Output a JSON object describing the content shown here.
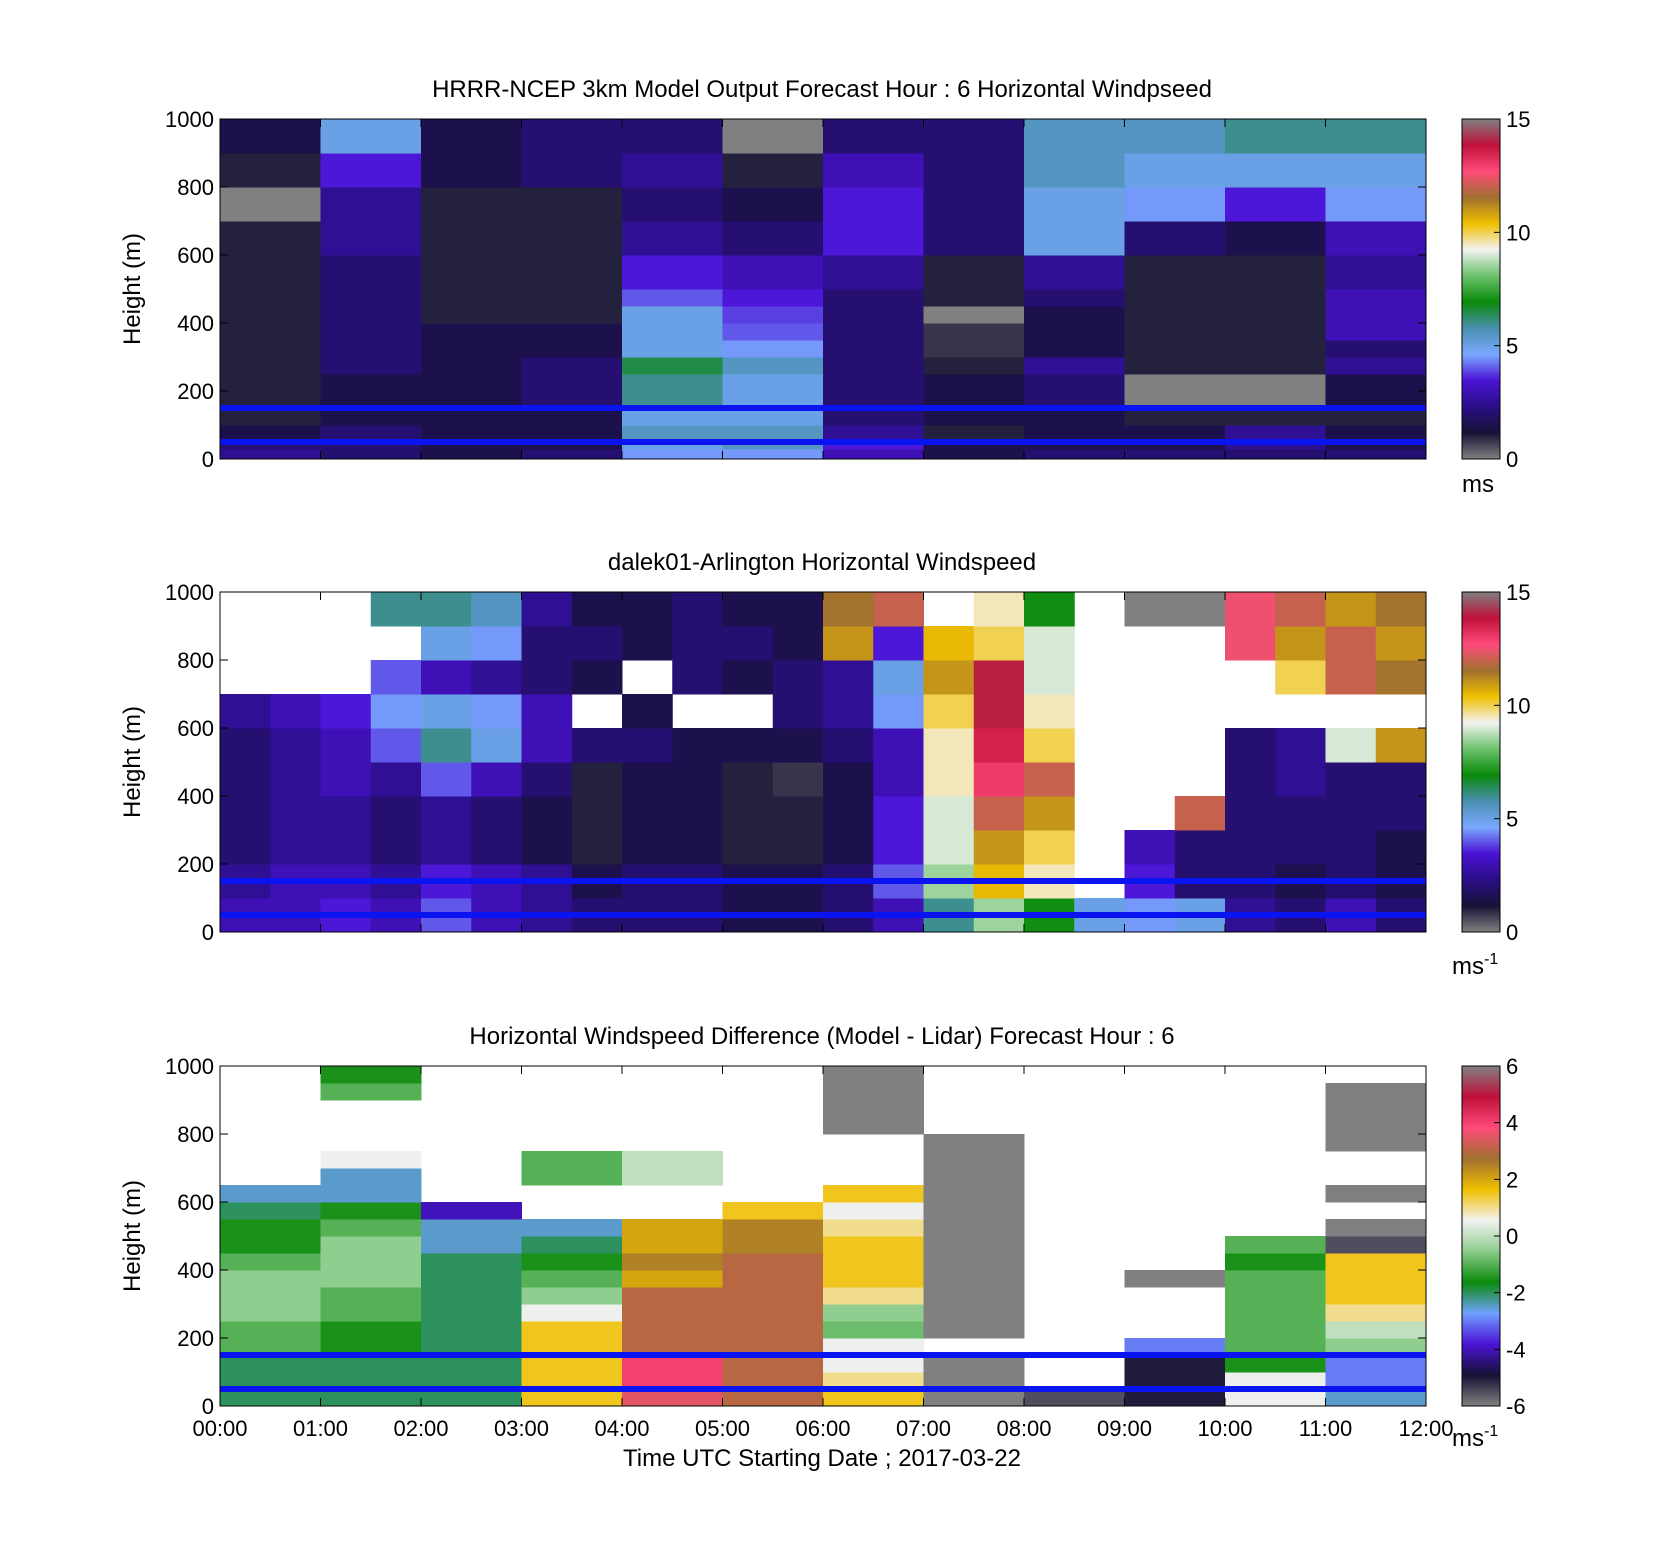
{
  "colors": {
    "ref_line": "#0a14f0",
    "wind_stops": [
      "#808080",
      "#161235",
      "#2a0e86",
      "#4b12d6",
      "#7aa8ff",
      "#4a8fb0",
      "#0a8a0a",
      "#6cc26c",
      "#f2f2f2",
      "#f0c000",
      "#a07030",
      "#ff4a7a",
      "#c0103a",
      "#808080"
    ],
    "diff_stops": [
      "#808080",
      "#161235",
      "#4b12d6",
      "#6fa0ff",
      "#0a8a0a",
      "#8ccc8c",
      "#f2f2f2",
      "#f0c000",
      "#a07030",
      "#ff4a7a",
      "#c0103a",
      "#808080"
    ]
  },
  "panels": [
    {
      "title": "HRRR-NCEP 3km Model Output   Forecast Hour : 6 Horizontal Windpseed",
      "ylabel": "Height (m)",
      "y_ticks": [
        "1000",
        "800",
        "600",
        "400",
        "200",
        "0"
      ],
      "colorbar_ticks": [
        "15",
        "10",
        "5",
        "0"
      ],
      "colorbar_unit": "ms",
      "colorbar_unit_sup": ""
    },
    {
      "title": "dalek01-Arlington  Horizontal Windspeed",
      "ylabel": "Height (m)",
      "y_ticks": [
        "1000",
        "800",
        "600",
        "400",
        "200",
        "0"
      ],
      "colorbar_ticks": [
        "15",
        "10",
        "5",
        "0"
      ],
      "colorbar_unit": "ms",
      "colorbar_unit_sup": "-1"
    },
    {
      "title": "Horizontal Windspeed Difference (Model - Lidar) Forecast Hour : 6",
      "ylabel": "Height (m)",
      "y_ticks": [
        "1000",
        "800",
        "600",
        "400",
        "200",
        "0"
      ],
      "colorbar_ticks": [
        "6",
        "4",
        "2",
        "0",
        "-2",
        "-4",
        "-6"
      ],
      "colorbar_unit": "ms",
      "colorbar_unit_sup": "-1"
    }
  ],
  "x_ticks": [
    "00:00",
    "01:00",
    "02:00",
    "03:00",
    "04:00",
    "05:00",
    "06:00",
    "07:00",
    "08:00",
    "09:00",
    "10:00",
    "11:00",
    "12:00"
  ],
  "xlabel": "Time UTC  Starting Date ; 2017-03-22",
  "chart_data": [
    {
      "type": "heatmap",
      "title": "HRRR-NCEP 3km Model Output   Forecast Hour : 6 Horizontal Windpseed",
      "xlabel": "",
      "ylabel": "Height (m)",
      "ylim": [
        0,
        1000
      ],
      "x_range": [
        "00:00",
        "12:00"
      ],
      "colorbar": {
        "range": [
          0,
          15
        ],
        "unit": "ms"
      },
      "reference_lines_height_m": [
        50,
        150
      ],
      "x": [
        "00:00",
        "01:00",
        "02:00",
        "03:00",
        "04:00",
        "05:00",
        "06:00",
        "07:00",
        "08:00",
        "09:00",
        "10:00",
        "11:00"
      ],
      "y_bin_edges": [
        0,
        30,
        60,
        100,
        160,
        200,
        250,
        300,
        350,
        400,
        450,
        500,
        550,
        600,
        700,
        800,
        900,
        1000
      ],
      "values": [
        [
          2.5,
          2.0,
          1.5,
          2.0,
          4.5,
          4.5,
          3.0,
          1.5,
          2.0,
          2.0,
          2.0,
          2.0
        ],
        [
          2.0,
          2.0,
          1.5,
          1.5,
          5.0,
          5.5,
          3.5,
          1.5,
          1.5,
          1.5,
          2.5,
          1.5
        ],
        [
          1.5,
          2.0,
          1.5,
          1.5,
          5.5,
          5.5,
          2.5,
          1.0,
          1.5,
          1.5,
          2.5,
          1.5
        ],
        [
          1.0,
          1.5,
          1.5,
          1.5,
          5.0,
          5.0,
          2.0,
          1.5,
          1.5,
          1.0,
          1.0,
          1.0
        ],
        [
          1.0,
          1.5,
          1.5,
          2.0,
          6.0,
          5.0,
          2.0,
          1.5,
          2.0,
          0.0,
          0.0,
          1.5
        ],
        [
          1.0,
          1.5,
          1.5,
          2.0,
          6.0,
          5.0,
          2.0,
          1.5,
          2.0,
          0.0,
          0.0,
          1.5
        ],
        [
          1.0,
          2.0,
          1.5,
          2.0,
          6.5,
          5.5,
          2.0,
          1.0,
          2.5,
          1.0,
          1.0,
          2.5
        ],
        [
          1.0,
          2.0,
          1.5,
          1.5,
          5.0,
          4.5,
          2.0,
          0.8,
          1.5,
          1.0,
          1.0,
          2.0
        ],
        [
          1.0,
          2.0,
          1.5,
          1.5,
          5.0,
          4.0,
          2.0,
          0.8,
          1.5,
          1.0,
          1.0,
          3.0
        ],
        [
          1.0,
          2.0,
          1.0,
          1.0,
          5.0,
          3.8,
          2.0,
          0.0,
          1.5,
          1.0,
          1.0,
          3.0
        ],
        [
          1.0,
          2.0,
          1.0,
          1.0,
          4.0,
          3.5,
          2.0,
          1.0,
          2.0,
          1.0,
          1.0,
          3.0
        ],
        [
          1.0,
          2.0,
          1.0,
          1.0,
          3.5,
          3.0,
          2.5,
          1.0,
          2.5,
          1.0,
          1.0,
          2.5
        ],
        [
          1.0,
          2.0,
          1.0,
          1.0,
          3.5,
          3.0,
          2.5,
          1.0,
          2.5,
          1.0,
          1.0,
          2.5
        ],
        [
          1.0,
          2.5,
          1.0,
          1.0,
          2.5,
          2.0,
          3.5,
          2.0,
          5.0,
          2.0,
          1.5,
          3.0
        ],
        [
          0.0,
          2.5,
          1.0,
          1.0,
          2.0,
          1.5,
          3.5,
          2.0,
          5.0,
          4.5,
          3.5,
          4.5
        ],
        [
          1.0,
          3.5,
          1.5,
          2.0,
          2.5,
          1.0,
          3.0,
          2.0,
          5.5,
          5.0,
          5.0,
          5.0
        ],
        [
          1.5,
          5.0,
          1.5,
          2.0,
          2.0,
          0.0,
          2.0,
          2.0,
          5.5,
          5.5,
          6.0,
          6.0
        ]
      ]
    },
    {
      "type": "heatmap",
      "title": "dalek01-Arlington  Horizontal Windspeed",
      "xlabel": "",
      "ylabel": "Height (m)",
      "ylim": [
        0,
        1000
      ],
      "x_range": [
        "00:00",
        "12:00"
      ],
      "colorbar": {
        "range": [
          0,
          15
        ],
        "unit": "ms-1"
      },
      "reference_lines_height_m": [
        50,
        150
      ],
      "x": [
        "00:00",
        "00:30",
        "01:00",
        "01:30",
        "02:00",
        "02:30",
        "03:00",
        "03:30",
        "04:00",
        "04:30",
        "05:00",
        "05:30",
        "06:00",
        "06:30",
        "07:00",
        "07:30",
        "08:00",
        "08:30",
        "09:00",
        "09:30",
        "10:00",
        "10:30",
        "11:00",
        "11:30"
      ],
      "y_bin_edges": [
        0,
        100,
        200,
        300,
        400,
        500,
        600,
        700,
        800,
        900,
        1000
      ],
      "values": [
        [
          3.0,
          3.0,
          3.5,
          3.0,
          4.0,
          3.0,
          2.5,
          2.0,
          2.0,
          2.0,
          1.5,
          1.5,
          2.0,
          3.0,
          6.0,
          8.5,
          7.0,
          5.0,
          4.5,
          5.0,
          2.5,
          2.0,
          3.0,
          2.0
        ],
        [
          2.5,
          3.0,
          3.0,
          2.5,
          3.5,
          3.0,
          2.5,
          1.5,
          2.0,
          2.0,
          1.5,
          1.5,
          2.0,
          4.0,
          8.5,
          10.5,
          9.5,
          null,
          3.5,
          2.0,
          2.0,
          1.5,
          2.0,
          1.5
        ],
        [
          2.0,
          2.5,
          2.5,
          2.0,
          2.5,
          2.0,
          1.5,
          1.0,
          1.5,
          1.5,
          1.0,
          1.0,
          1.5,
          3.5,
          9.0,
          11.0,
          10.0,
          null,
          3.0,
          2.0,
          2.0,
          2.0,
          2.0,
          1.5
        ],
        [
          2.0,
          2.5,
          2.5,
          2.0,
          2.5,
          2.0,
          1.5,
          1.0,
          1.5,
          1.5,
          1.0,
          1.0,
          1.5,
          3.5,
          9.0,
          12.0,
          11.0,
          null,
          null,
          12.0,
          2.0,
          2.0,
          2.0,
          2.0
        ],
        [
          2.0,
          2.5,
          3.0,
          2.5,
          4.0,
          3.0,
          2.0,
          1.0,
          1.5,
          1.5,
          1.0,
          0.8,
          1.5,
          3.0,
          9.5,
          13.0,
          12.0,
          null,
          null,
          null,
          2.0,
          2.5,
          2.0,
          2.0
        ],
        [
          2.0,
          2.5,
          3.0,
          4.0,
          6.0,
          5.0,
          3.0,
          2.0,
          2.0,
          1.5,
          1.5,
          1.5,
          2.0,
          3.0,
          9.5,
          13.5,
          10.0,
          null,
          null,
          null,
          2.0,
          2.5,
          9.0,
          11.0
        ],
        [
          2.5,
          3.0,
          3.5,
          4.5,
          5.0,
          4.5,
          3.0,
          null,
          1.5,
          null,
          null,
          2.0,
          2.5,
          4.5,
          10.0,
          14.0,
          9.5,
          null,
          null,
          null,
          null,
          null,
          null,
          null
        ],
        [
          null,
          null,
          null,
          4.0,
          3.0,
          2.5,
          2.0,
          1.5,
          null,
          2.0,
          1.5,
          2.0,
          2.5,
          5.0,
          11.0,
          14.0,
          9.0,
          null,
          null,
          null,
          null,
          10.0,
          12.0,
          11.5
        ],
        [
          null,
          null,
          null,
          null,
          5.0,
          4.5,
          2.0,
          2.0,
          1.5,
          2.0,
          2.0,
          1.5,
          11.0,
          3.5,
          10.5,
          10.0,
          9.0,
          null,
          null,
          null,
          12.5,
          11.0,
          12.0,
          11.0
        ],
        [
          null,
          null,
          null,
          6.0,
          6.0,
          5.5,
          2.5,
          1.5,
          1.5,
          2.0,
          1.5,
          1.5,
          11.5,
          12.0,
          null,
          9.5,
          7.0,
          null,
          0.0,
          0.0,
          12.5,
          12.0,
          11.0,
          11.5
        ]
      ]
    },
    {
      "type": "heatmap",
      "title": "Horizontal Windspeed Difference (Model - Lidar) Forecast Hour : 6",
      "xlabel": "Time UTC  Starting Date ; 2017-03-22",
      "ylabel": "Height (m)",
      "ylim": [
        0,
        1000
      ],
      "x_range": [
        "00:00",
        "12:00"
      ],
      "colorbar": {
        "range": [
          -6,
          6
        ],
        "unit": "ms-1"
      },
      "reference_lines_height_m": [
        50,
        150
      ],
      "x": [
        "00:00",
        "01:00",
        "02:00",
        "03:00",
        "04:00",
        "05:00",
        "06:00",
        "07:00",
        "08:00",
        "09:00",
        "10:00",
        "11:00"
      ],
      "y_bin_edges": [
        0,
        50,
        100,
        150,
        200,
        250,
        300,
        350,
        400,
        450,
        500,
        550,
        600,
        650,
        700,
        750,
        800,
        850,
        900,
        950,
        1000
      ],
      "values": [
        [
          -2.0,
          -2.0,
          -2.0,
          1.5,
          3.5,
          3.0,
          1.5,
          6.0,
          -5.5,
          -5.0,
          0.5,
          -2.5
        ],
        [
          -2.0,
          -2.0,
          -2.0,
          1.5,
          4.0,
          3.0,
          1.0,
          6.0,
          null,
          -5.0,
          0.5,
          -3.0
        ],
        [
          -2.0,
          -2.0,
          -2.0,
          1.5,
          4.0,
          3.0,
          0.5,
          6.0,
          null,
          -5.0,
          -1.5,
          -3.0
        ],
        [
          -1.0,
          -1.5,
          -2.0,
          1.5,
          3.0,
          3.0,
          0.5,
          null,
          null,
          -3.0,
          -1.0,
          -0.5
        ],
        [
          -1.0,
          -1.5,
          -2.0,
          1.5,
          3.0,
          3.0,
          -0.8,
          6.0,
          null,
          null,
          -1.0,
          0.0
        ],
        [
          -0.5,
          -1.0,
          -2.0,
          0.5,
          3.0,
          3.0,
          -0.5,
          6.0,
          null,
          null,
          -1.0,
          1.0
        ],
        [
          -0.5,
          -1.0,
          -2.0,
          -0.5,
          3.0,
          3.0,
          1.0,
          6.0,
          null,
          null,
          -1.0,
          1.5
        ],
        [
          -0.5,
          -0.5,
          -2.0,
          -1.0,
          2.0,
          3.0,
          1.5,
          6.0,
          null,
          6.0,
          -1.0,
          1.5
        ],
        [
          -1.0,
          -0.5,
          -2.0,
          -1.5,
          2.5,
          3.0,
          1.5,
          6.0,
          null,
          null,
          -1.5,
          1.5
        ],
        [
          -1.5,
          -0.5,
          -2.5,
          -2.0,
          2.0,
          2.5,
          1.5,
          6.0,
          null,
          null,
          -1.0,
          -5.5
        ],
        [
          -1.5,
          -1.0,
          -2.5,
          -2.5,
          2.0,
          2.5,
          1.0,
          6.0,
          null,
          null,
          null,
          6.0
        ],
        [
          -2.0,
          -1.5,
          -4.0,
          null,
          null,
          1.5,
          0.5,
          6.0,
          null,
          null,
          null,
          null
        ],
        [
          -2.5,
          -2.5,
          null,
          null,
          null,
          null,
          1.5,
          6.0,
          null,
          null,
          null,
          6.0
        ],
        [
          null,
          -2.5,
          null,
          -1.0,
          0.0,
          null,
          null,
          6.0,
          null,
          null,
          null,
          null
        ],
        [
          null,
          0.5,
          null,
          -1.0,
          0.0,
          null,
          null,
          6.0,
          null,
          null,
          null,
          null
        ],
        [
          null,
          null,
          null,
          null,
          null,
          null,
          null,
          6.0,
          null,
          null,
          null,
          6.0
        ],
        [
          null,
          null,
          null,
          null,
          null,
          null,
          6.0,
          null,
          null,
          null,
          null,
          6.0
        ],
        [
          null,
          null,
          null,
          null,
          null,
          null,
          6.0,
          null,
          null,
          null,
          null,
          6.0
        ],
        [
          null,
          -1.0,
          null,
          null,
          null,
          null,
          6.0,
          null,
          null,
          null,
          null,
          6.0
        ],
        [
          null,
          -1.5,
          null,
          null,
          null,
          null,
          6.0,
          null,
          null,
          null,
          null,
          null
        ]
      ]
    }
  ]
}
